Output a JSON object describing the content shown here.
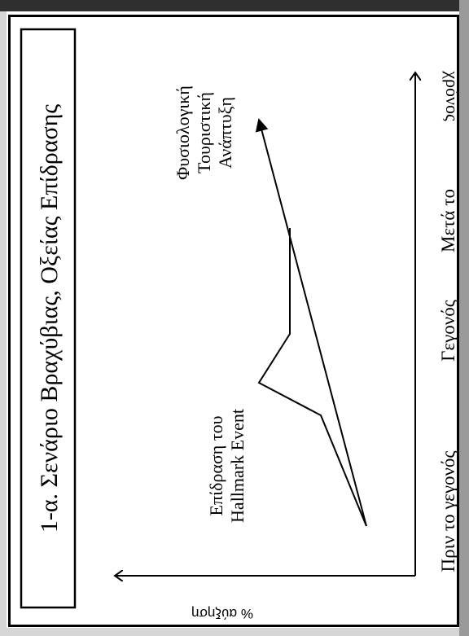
{
  "title": "1-α. Σενάριο Βραχύβιας, Οξείας Επίδρασης",
  "axes": {
    "x_label": "χρόνος",
    "y_label": "% αύξηση",
    "x_ticks": [
      "Πριν το γεγονός",
      "Γεγονός",
      "Μετά το"
    ]
  },
  "annotations": {
    "event_line1": "Επίδραση του",
    "event_line2": "Hallmark Event",
    "trend_line1": "Φυσιολογική",
    "trend_line2": "Τουριστική",
    "trend_line3": "Ανάπτυξη"
  }
}
